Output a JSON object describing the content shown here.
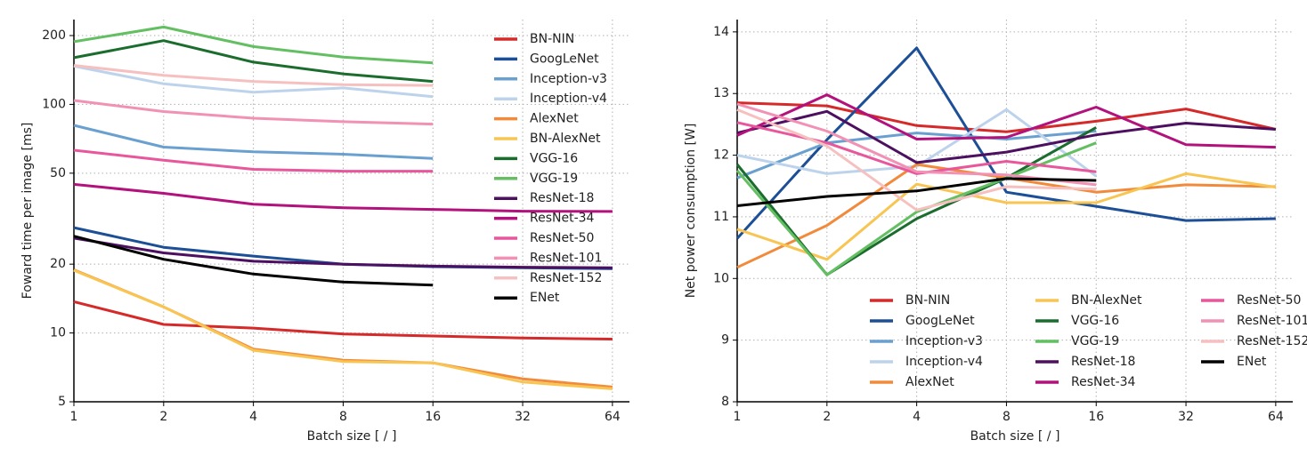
{
  "chart_data": [
    {
      "type": "line",
      "x_label": "Batch size [ / ]",
      "y_label": "Foward time per image [ms]",
      "x": [
        1,
        2,
        4,
        8,
        16,
        32,
        64
      ],
      "xlim": [
        1,
        73
      ],
      "xticks": [
        1,
        2,
        4,
        8,
        16,
        32,
        64
      ],
      "xscale": "log",
      "ylim": [
        5,
        235
      ],
      "yticks": [
        5,
        10,
        20,
        50,
        100,
        200
      ],
      "yscale": "log",
      "grid": true,
      "legend": "upper right",
      "legend_ncol": 1,
      "series": [
        {
          "name": "BN-NIN",
          "color": "#d62a2a",
          "values": [
            13.7,
            10.9,
            10.5,
            9.9,
            9.7,
            9.5,
            9.4
          ]
        },
        {
          "name": "GoogLeNet",
          "color": "#1c4f96",
          "values": [
            28.9,
            23.7,
            21.7,
            20,
            19.5,
            19.3,
            19.1
          ]
        },
        {
          "name": "Inception-v3",
          "color": "#6aa0cf",
          "values": [
            81,
            65,
            62,
            60.5,
            58,
            null,
            null
          ]
        },
        {
          "name": "Inception-v4",
          "color": "#bdd3ec",
          "values": [
            147,
            123,
            113,
            118,
            108,
            null,
            null
          ]
        },
        {
          "name": "AlexNet",
          "color": "#f18b3b",
          "values": [
            18.9,
            13.0,
            8.5,
            7.6,
            7.4,
            6.3,
            5.8
          ]
        },
        {
          "name": "BN-AlexNet",
          "color": "#f8c553",
          "values": [
            18.8,
            13.0,
            8.4,
            7.5,
            7.4,
            6.1,
            5.7
          ]
        },
        {
          "name": "VGG-16",
          "color": "#1b6d2e",
          "values": [
            160,
            190,
            153,
            136,
            126,
            null,
            null
          ]
        },
        {
          "name": "VGG-19",
          "color": "#63bf62",
          "values": [
            188,
            218,
            179,
            161,
            152,
            null,
            null
          ]
        },
        {
          "name": "ResNet-18",
          "color": "#4d0f5f",
          "values": [
            26,
            22.4,
            20.6,
            20,
            19.6,
            19.4,
            19.3
          ]
        },
        {
          "name": "ResNet-34",
          "color": "#b3117c",
          "values": [
            44.7,
            40.8,
            36.6,
            35.3,
            34.7,
            34.1,
            34
          ]
        },
        {
          "name": "ResNet-50",
          "color": "#e8579c",
          "values": [
            63,
            57,
            52,
            51,
            51,
            null,
            null
          ]
        },
        {
          "name": "ResNet-101",
          "color": "#f191b3",
          "values": [
            104,
            93,
            87,
            84,
            82,
            null,
            null
          ]
        },
        {
          "name": "ResNet-152",
          "color": "#f7c0c0",
          "values": [
            148,
            134,
            126,
            122,
            121,
            null,
            null
          ]
        },
        {
          "name": "ENet",
          "color": "#000000",
          "values": [
            26.5,
            21,
            18.1,
            16.7,
            16.2,
            null,
            null
          ]
        }
      ]
    },
    {
      "type": "line",
      "x_label": "Batch size [ / ]",
      "y_label": "Net power consumption [W]",
      "x": [
        1,
        2,
        4,
        8,
        16,
        32,
        64
      ],
      "xlim": [
        1,
        73
      ],
      "xticks": [
        1,
        2,
        4,
        8,
        16,
        32,
        64
      ],
      "xscale": "log",
      "ylim": [
        8,
        14.2
      ],
      "yticks": [
        8,
        9,
        10,
        11,
        12,
        13,
        14
      ],
      "yscale": "linear",
      "grid": true,
      "legend": "lower right",
      "legend_ncol": 3,
      "series": [
        {
          "name": "BN-NIN",
          "color": "#d62a2a",
          "values": [
            12.85,
            12.8,
            12.48,
            12.38,
            12.55,
            12.75,
            12.42
          ]
        },
        {
          "name": "GoogLeNet",
          "color": "#1c4f96",
          "values": [
            10.65,
            12.25,
            13.74,
            11.4,
            11.17,
            10.94,
            10.97
          ]
        },
        {
          "name": "Inception-v3",
          "color": "#6aa0cf",
          "values": [
            11.63,
            12.2,
            12.36,
            12.26,
            12.39,
            null,
            null
          ]
        },
        {
          "name": "Inception-v4",
          "color": "#bdd3ec",
          "values": [
            12.0,
            11.7,
            11.82,
            12.74,
            11.66,
            null,
            null
          ]
        },
        {
          "name": "AlexNet",
          "color": "#f18b3b",
          "values": [
            10.18,
            10.86,
            11.85,
            11.63,
            11.4,
            11.52,
            11.49
          ]
        },
        {
          "name": "BN-AlexNet",
          "color": "#f8c553",
          "values": [
            10.8,
            10.31,
            11.53,
            11.23,
            11.23,
            11.7,
            11.48
          ]
        },
        {
          "name": "VGG-16",
          "color": "#1b6d2e",
          "values": [
            11.85,
            10.06,
            10.97,
            11.63,
            12.45,
            null,
            null
          ]
        },
        {
          "name": "VGG-19",
          "color": "#63bf62",
          "values": [
            11.75,
            10.06,
            11.08,
            11.63,
            12.2,
            null,
            null
          ]
        },
        {
          "name": "ResNet-18",
          "color": "#4d0f5f",
          "values": [
            12.36,
            12.71,
            11.88,
            12.05,
            12.33,
            12.52,
            12.42
          ]
        },
        {
          "name": "ResNet-34",
          "color": "#b3117c",
          "values": [
            12.32,
            12.98,
            12.26,
            12.29,
            12.78,
            12.17,
            12.13
          ]
        },
        {
          "name": "ResNet-50",
          "color": "#e8579c",
          "values": [
            12.53,
            12.2,
            11.7,
            11.9,
            11.73,
            null,
            null
          ]
        },
        {
          "name": "ResNet-101",
          "color": "#f191b3",
          "values": [
            12.83,
            12.39,
            11.73,
            11.68,
            11.52,
            null,
            null
          ]
        },
        {
          "name": "ResNet-152",
          "color": "#f7c0c0",
          "values": [
            12.74,
            12.15,
            11.11,
            11.49,
            11.45,
            null,
            null
          ]
        },
        {
          "name": "ENet",
          "color": "#000000",
          "values": [
            11.18,
            11.33,
            11.42,
            11.62,
            11.59,
            null,
            null
          ]
        }
      ]
    }
  ]
}
